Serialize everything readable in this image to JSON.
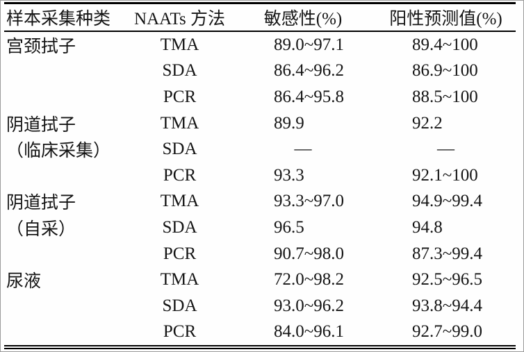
{
  "table": {
    "headers": {
      "sample": "样本采集种类",
      "method": "NAATs 方法",
      "sensitivity": "敏感性(%)",
      "ppv": "阳性预测值(%)"
    },
    "rows": [
      {
        "sample": "宫颈拭子",
        "method": "TMA",
        "sensitivity": "89.0~97.1",
        "ppv": "89.4~100"
      },
      {
        "sample": "",
        "method": "SDA",
        "sensitivity": "86.4~96.2",
        "ppv": "86.9~100"
      },
      {
        "sample": "",
        "method": "PCR",
        "sensitivity": "86.4~95.8",
        "ppv": "88.5~100"
      },
      {
        "sample": "阴道拭子",
        "method": "TMA",
        "sensitivity": "89.9",
        "ppv": "92.2"
      },
      {
        "sample": "（临床采集）",
        "method": "SDA",
        "sensitivity": "—",
        "ppv": "—"
      },
      {
        "sample": "",
        "method": "PCR",
        "sensitivity": "93.3",
        "ppv": "92.1~100"
      },
      {
        "sample": "阴道拭子",
        "method": "TMA",
        "sensitivity": "93.3~97.0",
        "ppv": "94.9~99.4"
      },
      {
        "sample": "（自采）",
        "method": "SDA",
        "sensitivity": "96.5",
        "ppv": "94.8"
      },
      {
        "sample": "",
        "method": "PCR",
        "sensitivity": "90.7~98.0",
        "ppv": "87.3~99.4"
      },
      {
        "sample": "尿液",
        "method": "TMA",
        "sensitivity": "72.0~98.2",
        "ppv": "92.5~96.5"
      },
      {
        "sample": "",
        "method": "SDA",
        "sensitivity": "93.0~96.2",
        "ppv": "93.8~94.4"
      },
      {
        "sample": "",
        "method": "PCR",
        "sensitivity": "84.0~96.1",
        "ppv": "92.7~99.0"
      }
    ]
  }
}
